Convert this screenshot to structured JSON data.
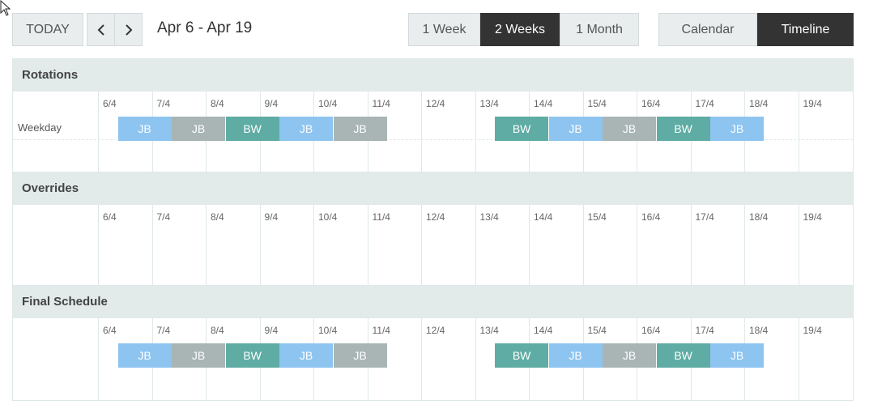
{
  "toolbar": {
    "today_label": "TODAY",
    "date_range": "Apr 6 - Apr 19",
    "range_options": [
      {
        "label": "1 Week",
        "active": false
      },
      {
        "label": "2 Weeks",
        "active": true
      },
      {
        "label": "1 Month",
        "active": false
      }
    ],
    "view_options": [
      {
        "label": "Calendar",
        "active": false
      },
      {
        "label": "Timeline",
        "active": true
      }
    ]
  },
  "days": [
    "6/4",
    "7/4",
    "8/4",
    "9/4",
    "10/4",
    "11/4",
    "12/4",
    "13/4",
    "14/4",
    "15/4",
    "16/4",
    "17/4",
    "18/4",
    "19/4"
  ],
  "colors": {
    "JB": "#8ec4f0",
    "GRAY": "#a9b5b5",
    "BW": "#5eaca3"
  },
  "sections": [
    {
      "title": "Rotations",
      "row_label": "Weekday",
      "blocks": [
        {
          "label": "JB",
          "color": "#8ec4f0"
        },
        {
          "label": "JB",
          "color": "#a9b5b5"
        },
        {
          "label": "BW",
          "color": "#5eaca3"
        },
        {
          "label": "JB",
          "color": "#8ec4f0"
        },
        {
          "label": "JB",
          "color": "#a9b5b5"
        },
        {
          "label": "BW",
          "color": "#5eaca3"
        },
        {
          "label": "JB",
          "color": "#8ec4f0"
        },
        {
          "label": "JB",
          "color": "#a9b5b5"
        },
        {
          "label": "BW",
          "color": "#5eaca3"
        },
        {
          "label": "JB",
          "color": "#8ec4f0"
        }
      ]
    },
    {
      "title": "Overrides",
      "row_label": "",
      "blocks": []
    },
    {
      "title": "Final Schedule",
      "row_label": "",
      "blocks": [
        {
          "label": "JB",
          "color": "#8ec4f0"
        },
        {
          "label": "JB",
          "color": "#a9b5b5"
        },
        {
          "label": "BW",
          "color": "#5eaca3"
        },
        {
          "label": "JB",
          "color": "#8ec4f0"
        },
        {
          "label": "JB",
          "color": "#a9b5b5"
        },
        {
          "label": "BW",
          "color": "#5eaca3"
        },
        {
          "label": "JB",
          "color": "#8ec4f0"
        },
        {
          "label": "JB",
          "color": "#a9b5b5"
        },
        {
          "label": "BW",
          "color": "#5eaca3"
        },
        {
          "label": "JB",
          "color": "#8ec4f0"
        }
      ]
    }
  ]
}
